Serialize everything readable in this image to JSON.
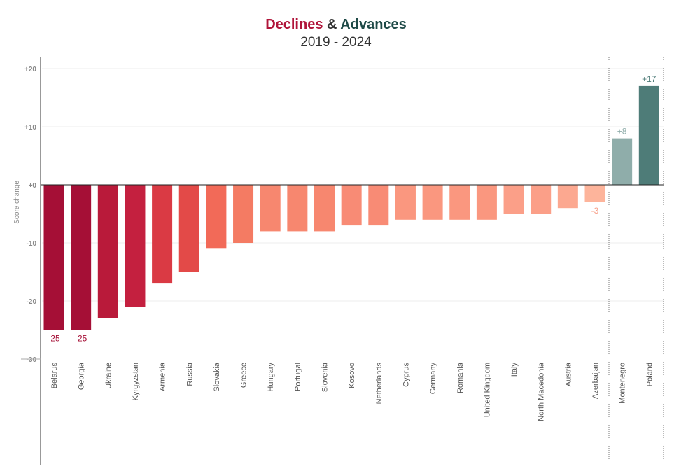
{
  "title": {
    "declines": "Declines",
    "amp": "&",
    "advances": "Advances",
    "subtitle": "2019 - 2024"
  },
  "chart_data": {
    "type": "bar",
    "ylabel": "Score change",
    "ylim": [
      -30,
      22
    ],
    "yticks": [
      -30,
      -20,
      -10,
      0,
      10,
      20
    ],
    "ytick_labels": [
      "-30",
      "-20",
      "-10",
      "+0",
      "+10",
      "+20"
    ],
    "grid": true,
    "categories": [
      "Belarus",
      "Georgia",
      "Ukraine",
      "Kyrgyzstan",
      "Armenia",
      "Russia",
      "Slovakia",
      "Greece",
      "Hungary",
      "Portugal",
      "Slovenia",
      "Kosovo",
      "Netherlands",
      "Cyprus",
      "Germany",
      "Romania",
      "United Kingdom",
      "Italy",
      "North Macedonia",
      "Austria",
      "Azerbaijan",
      "Montenegro",
      "Poland"
    ],
    "values": [
      -25,
      -25,
      -23,
      -21,
      -17,
      -15,
      -11,
      -10,
      -8,
      -8,
      -8,
      -7,
      -7,
      -6,
      -6,
      -6,
      -6,
      -5,
      -5,
      -4,
      -3,
      8,
      17
    ],
    "colors": [
      "#a50f36",
      "#a50f36",
      "#b91a3a",
      "#c4203f",
      "#da3a44",
      "#e34a48",
      "#f26a58",
      "#f47b63",
      "#f7876f",
      "#f7876f",
      "#f7876f",
      "#f88b75",
      "#f88b75",
      "#fa977f",
      "#fa977f",
      "#fa977f",
      "#fa977f",
      "#fb9f88",
      "#fb9f88",
      "#fca890",
      "#fdb49b",
      "#8fadaa",
      "#4e7c78"
    ],
    "data_labels": [
      {
        "index": 0,
        "text": "-25",
        "color": "#a50f36"
      },
      {
        "index": 1,
        "text": "-25",
        "color": "#a50f36"
      },
      {
        "index": 20,
        "text": "-3",
        "color": "#f7a08a"
      },
      {
        "index": 21,
        "text": "+8",
        "color": "#8fadaa"
      },
      {
        "index": 22,
        "text": "+17",
        "color": "#4e7c78"
      }
    ]
  }
}
